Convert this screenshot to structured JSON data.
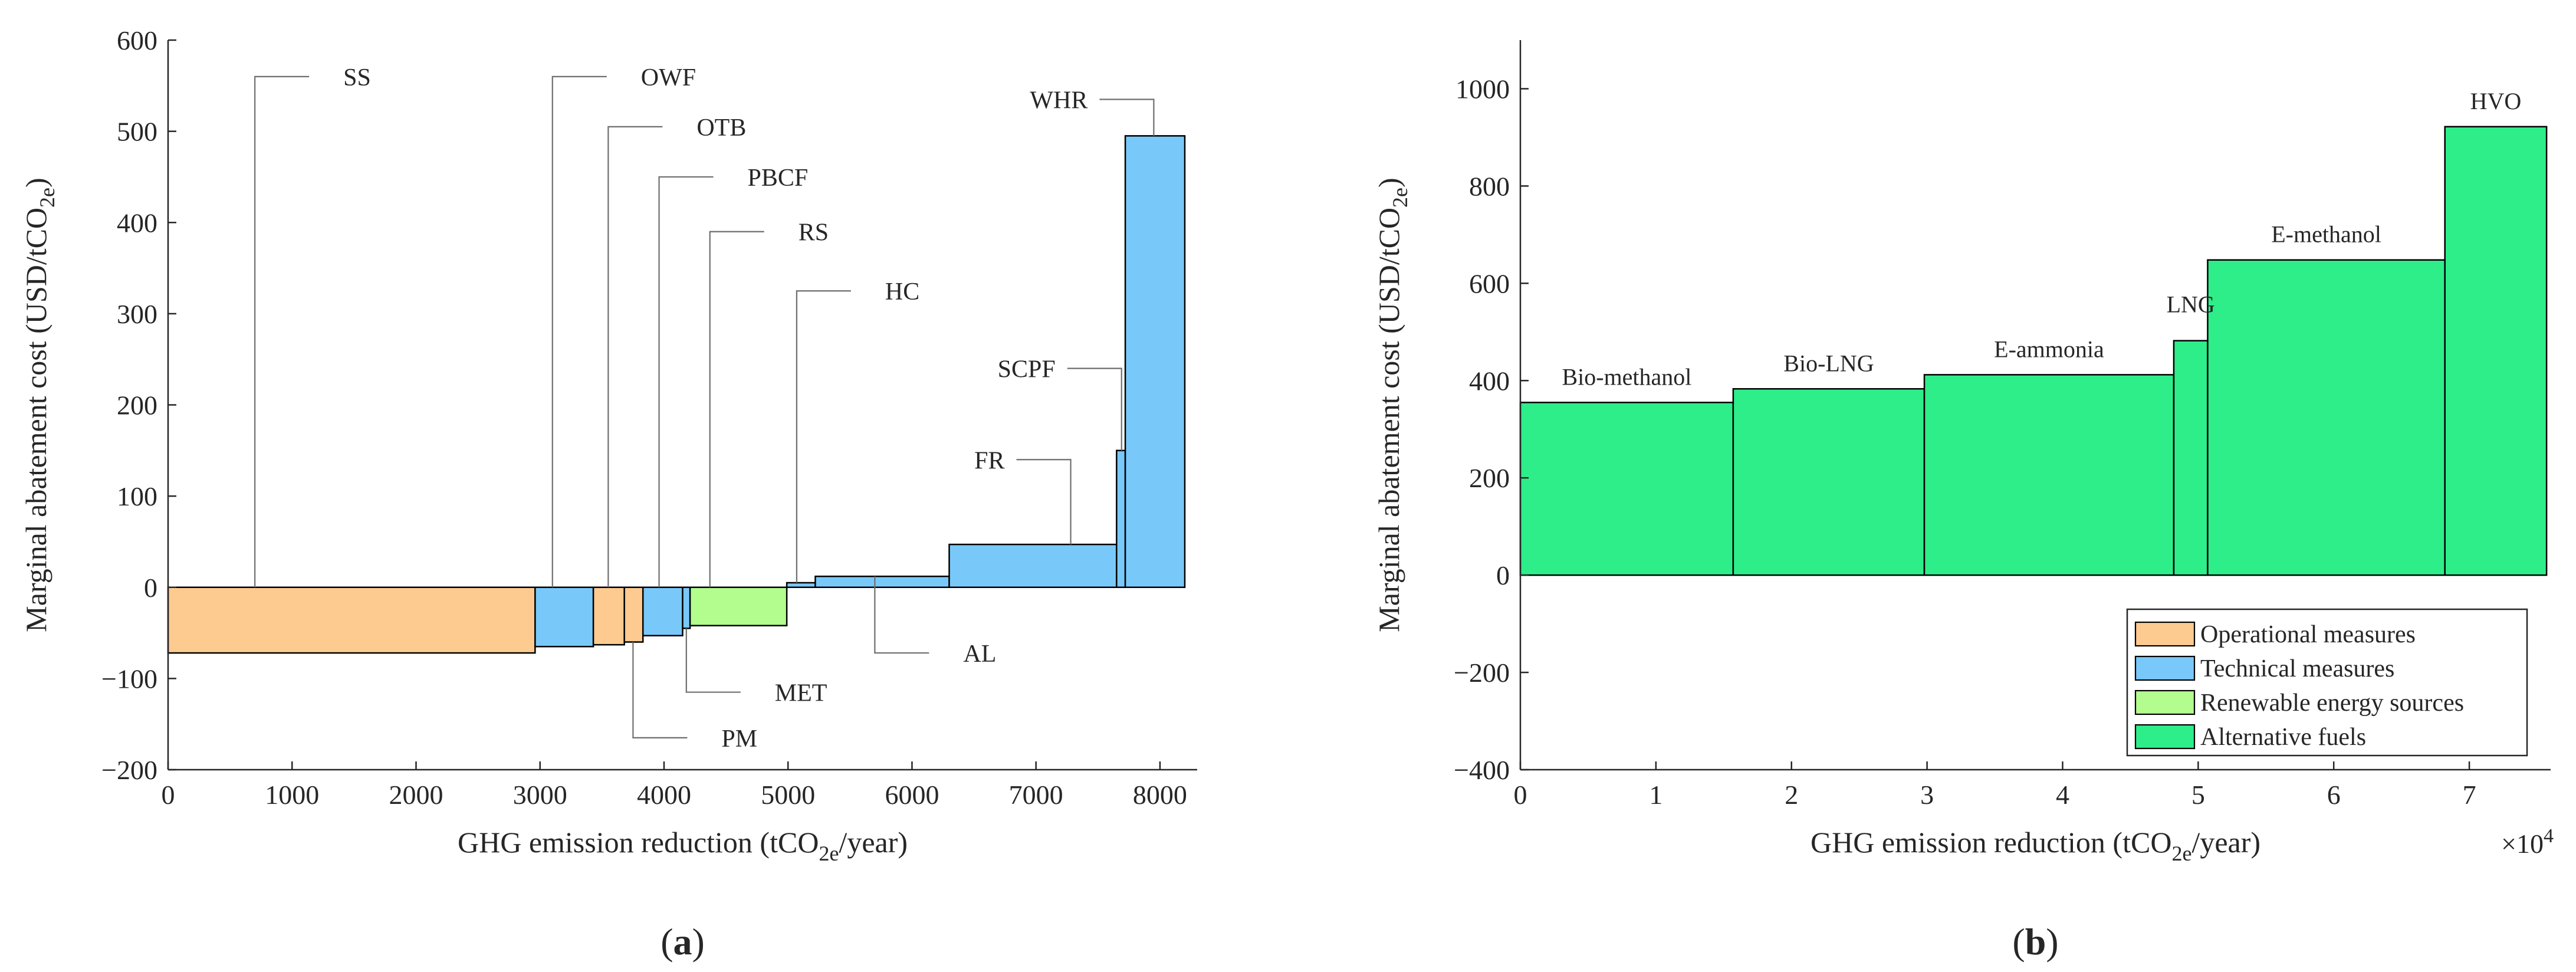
{
  "colors": {
    "operational": "#FDCA90",
    "technical": "#78C9FA",
    "renewable": "#B3FD8E",
    "alternative": "#2EEE8A",
    "axis": "#262626",
    "leader": "#6e6e6e"
  },
  "chart_data": [
    {
      "type": "bar",
      "subtype": "marginal-abatement-cost-curve",
      "panel_label": "a",
      "xlabel_parts": [
        "GHG emission reduction (tCO",
        "2e",
        "/year)"
      ],
      "ylabel_parts": [
        "Marginal abatement cost (USD/tCO",
        "2e",
        ")"
      ],
      "xlim": [
        0,
        8300
      ],
      "ylim": [
        -200,
        600
      ],
      "xticks": [
        0,
        1000,
        2000,
        3000,
        4000,
        5000,
        6000,
        7000,
        8000
      ],
      "yticks": [
        -200,
        -100,
        0,
        100,
        200,
        300,
        400,
        500,
        600
      ],
      "ytick_labels": [
        "−200",
        "−100",
        "0",
        "100",
        "200",
        "300",
        "400",
        "500",
        "600"
      ],
      "bars": [
        {
          "name": "SS",
          "category": "operational",
          "x0": 0,
          "x1": 2960,
          "value": -72
        },
        {
          "name": "OWF",
          "category": "technical",
          "x0": 2960,
          "x1": 3430,
          "value": -65
        },
        {
          "name": "OTB",
          "category": "operational",
          "x0": 3430,
          "x1": 3680,
          "value": -63
        },
        {
          "name": "PM",
          "category": "operational",
          "x0": 3680,
          "x1": 3830,
          "value": -60
        },
        {
          "name": "PBCF",
          "category": "technical",
          "x0": 3830,
          "x1": 4150,
          "value": -53
        },
        {
          "name": "MET",
          "category": "technical",
          "x0": 4150,
          "x1": 4210,
          "value": -45
        },
        {
          "name": "RS",
          "category": "renewable",
          "x0": 4210,
          "x1": 4990,
          "value": -42
        },
        {
          "name": "HC",
          "category": "technical",
          "x0": 4990,
          "x1": 5220,
          "value": 5
        },
        {
          "name": "AL",
          "category": "technical",
          "x0": 5220,
          "x1": 6300,
          "value": 12
        },
        {
          "name": "FR",
          "category": "technical",
          "x0": 6300,
          "x1": 7650,
          "value": 47
        },
        {
          "name": "SCPF",
          "category": "technical",
          "x0": 7650,
          "x1": 7720,
          "value": 150
        },
        {
          "name": "WHR",
          "category": "technical",
          "x0": 7720,
          "x1": 8200,
          "value": 495
        }
      ],
      "annotations": [
        {
          "text": "SS",
          "ax": 700,
          "ay": 0,
          "ly": 560,
          "side": "right"
        },
        {
          "text": "OWF",
          "ax": 3100,
          "ay": 0,
          "ly": 560,
          "side": "right"
        },
        {
          "text": "OTB",
          "ax": 3550,
          "ay": 0,
          "ly": 505,
          "side": "right"
        },
        {
          "text": "PBCF",
          "ax": 3960,
          "ay": 0,
          "ly": 450,
          "side": "right"
        },
        {
          "text": "RS",
          "ax": 4370,
          "ay": 0,
          "ly": 390,
          "side": "right"
        },
        {
          "text": "HC",
          "ax": 5070,
          "ay": 5,
          "ly": 325,
          "side": "right"
        },
        {
          "text": "SCPF",
          "ax": 7690,
          "ay": 150,
          "ly": 240,
          "side": "left"
        },
        {
          "text": "FR",
          "ax": 7280,
          "ay": 47,
          "ly": 140,
          "side": "left"
        },
        {
          "text": "WHR",
          "ax": 7950,
          "ay": 495,
          "ly": 535,
          "side": "left"
        },
        {
          "text": "AL",
          "ax": 5700,
          "ay": 12,
          "ly": -72,
          "side": "right"
        },
        {
          "text": "MET",
          "ax": 4180,
          "ay": -45,
          "ly": -115,
          "side": "right"
        },
        {
          "text": "PM",
          "ax": 3750,
          "ay": -60,
          "ly": -165,
          "side": "right"
        }
      ]
    },
    {
      "type": "bar",
      "subtype": "marginal-abatement-cost-curve",
      "panel_label": "b",
      "xlabel_parts": [
        "GHG emission reduction (tCO",
        "2e",
        "/year)"
      ],
      "ylabel_parts": [
        "Marginal abatement cost (USD/tCO",
        "2e",
        ")"
      ],
      "x_multiplier_parts": [
        "×10",
        "4"
      ],
      "xlim": [
        0,
        7.6
      ],
      "ylim": [
        -400,
        1100
      ],
      "xticks": [
        0,
        1,
        2,
        3,
        4,
        5,
        6,
        7
      ],
      "yticks": [
        -400,
        -200,
        0,
        200,
        400,
        600,
        800,
        1000
      ],
      "ytick_labels": [
        "−400",
        "−200",
        "0",
        "200",
        "400",
        "600",
        "800",
        "1000"
      ],
      "bars": [
        {
          "name": "Bio-methanol",
          "category": "alternative",
          "x0": 0,
          "x1": 1.57,
          "value": 355
        },
        {
          "name": "Bio-LNG",
          "category": "alternative",
          "x0": 1.57,
          "x1": 2.98,
          "value": 383
        },
        {
          "name": "E-ammonia",
          "category": "alternative",
          "x0": 2.98,
          "x1": 4.82,
          "value": 412
        },
        {
          "name": "LNG",
          "category": "alternative",
          "x0": 4.82,
          "x1": 5.07,
          "value": 482
        },
        {
          "name": "E-methanol",
          "category": "alternative",
          "x0": 5.07,
          "x1": 6.82,
          "value": 648
        },
        {
          "name": "HVO",
          "category": "alternative",
          "x0": 6.82,
          "x1": 7.57,
          "value": 922
        }
      ],
      "legend": {
        "position": "bottom-right",
        "entries": [
          {
            "label": "Operational measures",
            "category": "operational"
          },
          {
            "label": "Technical measures",
            "category": "technical"
          },
          {
            "label": "Renewable energy sources",
            "category": "renewable"
          },
          {
            "label": "Alternative fuels",
            "category": "alternative"
          }
        ]
      }
    }
  ]
}
